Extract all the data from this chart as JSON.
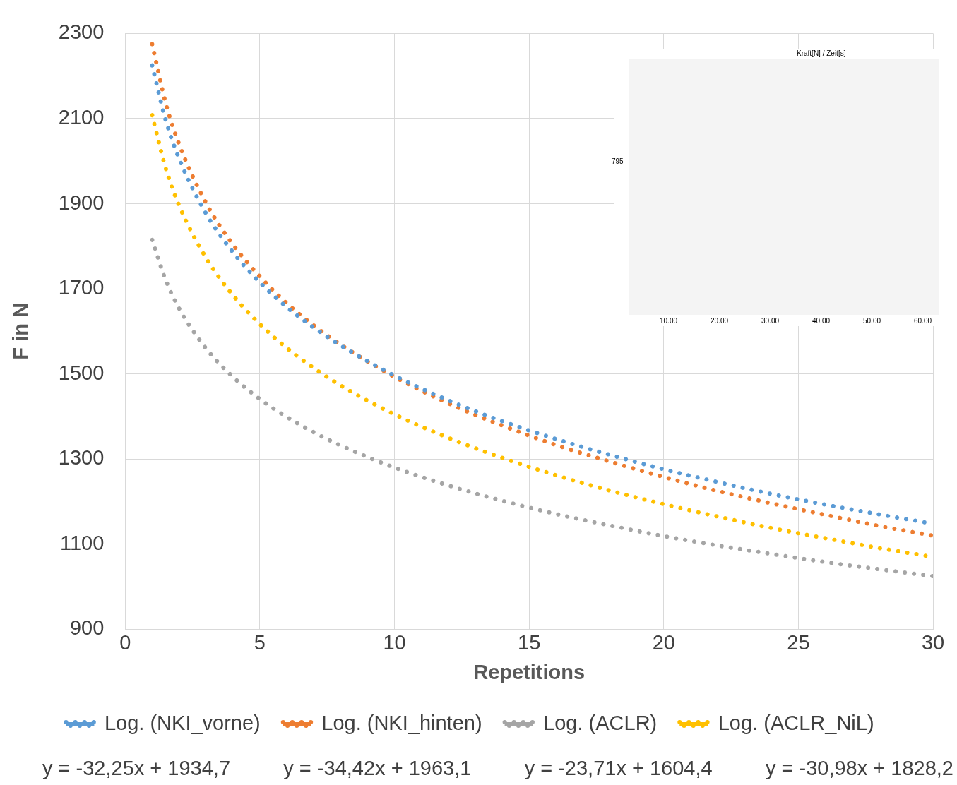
{
  "chart_data": {
    "type": "line",
    "xlabel": "Repetitions",
    "ylabel": "F in N",
    "xlim": [
      0,
      30
    ],
    "xticks": [
      0,
      5,
      10,
      15,
      20,
      25,
      30
    ],
    "ylim": [
      900,
      2300
    ],
    "yticks": [
      900,
      1100,
      1300,
      1500,
      1700,
      1900,
      2100,
      2300
    ],
    "grid": true,
    "legend": "bottom",
    "marker": "none",
    "line_style": "dotted",
    "x": [
      1,
      1.5,
      2,
      3,
      4,
      5,
      6,
      7,
      8,
      10,
      12,
      14,
      16,
      18,
      20,
      22,
      24,
      26,
      28,
      30
    ],
    "series": [
      {
        "name": "Log. (NKI_vorne)",
        "color": "#5b9bd5",
        "values": [
          2225,
          2097,
          2006,
          1877,
          1786,
          1715,
          1657,
          1609,
          1567,
          1496,
          1438,
          1389,
          1347,
          1310,
          1276,
          1246,
          1218,
          1193,
          1170,
          1148
        ]
      },
      {
        "name": "Log. (NKI_hinten)",
        "color": "#ed7d31",
        "values": [
          2275,
          2137,
          2040,
          1902,
          1804,
          1729,
          1666,
          1614,
          1569,
          1493,
          1431,
          1379,
          1333,
          1294,
          1258,
          1225,
          1196,
          1169,
          1143,
          1120
        ]
      },
      {
        "name": "Log. (ACLR)",
        "color": "#a5a5a5",
        "values": [
          1815,
          1721,
          1654,
          1560,
          1493,
          1441,
          1399,
          1363,
          1332,
          1280,
          1238,
          1202,
          1171,
          1144,
          1119,
          1097,
          1077,
          1058,
          1041,
          1025
        ]
      },
      {
        "name": "Log. (ACLR_NiL)",
        "color": "#ffc000",
        "values": [
          2108,
          1984,
          1896,
          1773,
          1685,
          1617,
          1561,
          1514,
          1473,
          1405,
          1350,
          1303,
          1262,
          1226,
          1194,
          1165,
          1138,
          1114,
          1091,
          1070
        ]
      }
    ],
    "annotations": [
      "y = -32,25x + 1934,7",
      "y = -34,42x + 1963,1",
      "y = -23,71x + 1604,4",
      "y = -30,98x + 1828,2",
      "Kraft[N] / Zeit[s]",
      "795",
      "10.00",
      "20.00",
      "30.00",
      "40.00",
      "50.00",
      "60.00"
    ]
  }
}
